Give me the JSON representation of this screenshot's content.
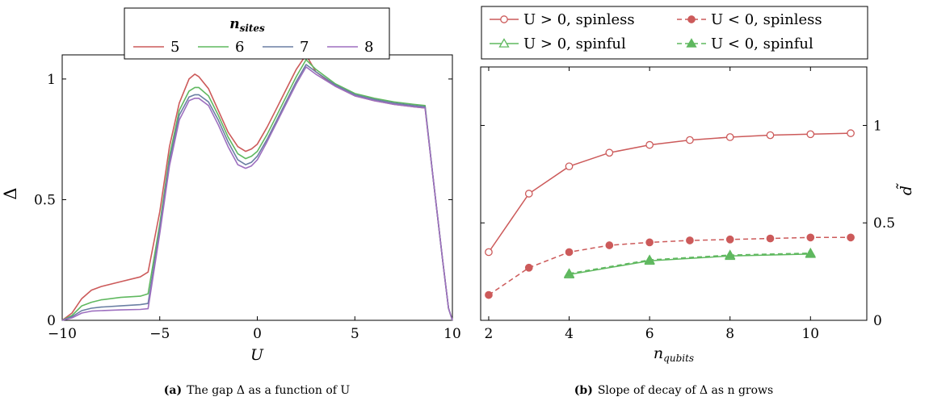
{
  "colors": {
    "red": "#cc5a5a",
    "green": "#5fb85f",
    "blue": "#6a7fa3",
    "purple": "#9d6fbf"
  },
  "chart_data": [
    {
      "id": "a",
      "type": "line",
      "caption_label": "(a)",
      "caption_text": "The gap Δ as a function of U",
      "xlabel": "U",
      "ylabel": "Δ",
      "xlim": [
        -10,
        10
      ],
      "ylim": [
        0,
        1.1
      ],
      "xticks": [
        -10,
        -5,
        0,
        5,
        10
      ],
      "xtick_labels": [
        "−10",
        "−5",
        "0",
        "5",
        "10"
      ],
      "yticks": [
        0,
        0.5,
        1
      ],
      "ytick_labels": [
        "0",
        "0.5",
        "1"
      ],
      "legend_title": "n",
      "legend_title_sub": "sites",
      "legend_placement": "top-center",
      "series": [
        {
          "name": "5",
          "color": "#cc5a5a",
          "x": [
            -10,
            -9.5,
            -9,
            -8.5,
            -8,
            -7,
            -6,
            -5.6,
            -5,
            -4.5,
            -4,
            -3.5,
            -3.2,
            -3,
            -2.5,
            -2,
            -1.5,
            -1,
            -0.6,
            -0.3,
            0,
            0.5,
            1,
            1.5,
            2,
            2.5,
            3,
            4,
            5,
            6,
            7,
            8,
            8.6,
            9,
            9.5,
            9.8,
            10
          ],
          "y": [
            0,
            0.03,
            0.09,
            0.125,
            0.14,
            0.16,
            0.18,
            0.2,
            0.45,
            0.72,
            0.9,
            1.0,
            1.02,
            1.01,
            0.96,
            0.87,
            0.78,
            0.72,
            0.7,
            0.71,
            0.73,
            0.8,
            0.88,
            0.96,
            1.04,
            1.1,
            1.03,
            0.97,
            0.93,
            0.91,
            0.895,
            0.885,
            0.88,
            0.6,
            0.25,
            0.05,
            0
          ]
        },
        {
          "name": "6",
          "color": "#5fb85f",
          "x": [
            -10,
            -9.5,
            -9,
            -8.5,
            -8,
            -7,
            -6,
            -5.6,
            -5,
            -4.5,
            -4,
            -3.5,
            -3.2,
            -3,
            -2.5,
            -2,
            -1.5,
            -1,
            -0.6,
            -0.3,
            0,
            0.5,
            1,
            1.5,
            2,
            2.5,
            3,
            4,
            5,
            6,
            7,
            8,
            8.6,
            9,
            9.5,
            9.8,
            10
          ],
          "y": [
            0,
            0.02,
            0.06,
            0.075,
            0.085,
            0.095,
            0.1,
            0.11,
            0.4,
            0.68,
            0.87,
            0.95,
            0.965,
            0.965,
            0.93,
            0.85,
            0.76,
            0.69,
            0.67,
            0.68,
            0.7,
            0.77,
            0.85,
            0.93,
            1.01,
            1.08,
            1.04,
            0.98,
            0.94,
            0.92,
            0.905,
            0.895,
            0.89,
            0.6,
            0.25,
            0.05,
            0
          ]
        },
        {
          "name": "7",
          "color": "#6a7fa3",
          "x": [
            -10,
            -9.5,
            -9,
            -8.5,
            -8,
            -7,
            -6,
            -5.6,
            -5,
            -4.5,
            -4,
            -3.5,
            -3.2,
            -3,
            -2.5,
            -2,
            -1.5,
            -1,
            -0.6,
            -0.3,
            0,
            0.5,
            1,
            1.5,
            2,
            2.5,
            3,
            4,
            5,
            6,
            7,
            8,
            8.6,
            9,
            9.5,
            9.8,
            10
          ],
          "y": [
            0,
            0.015,
            0.04,
            0.05,
            0.055,
            0.06,
            0.065,
            0.07,
            0.38,
            0.66,
            0.85,
            0.925,
            0.935,
            0.935,
            0.905,
            0.83,
            0.74,
            0.665,
            0.645,
            0.655,
            0.68,
            0.75,
            0.83,
            0.91,
            0.99,
            1.06,
            1.03,
            0.975,
            0.935,
            0.915,
            0.9,
            0.89,
            0.885,
            0.6,
            0.25,
            0.05,
            0
          ]
        },
        {
          "name": "8",
          "color": "#9d6fbf",
          "x": [
            -10,
            -9.5,
            -9,
            -8.5,
            -8,
            -7,
            -6,
            -5.6,
            -5,
            -4.5,
            -4,
            -3.5,
            -3.2,
            -3,
            -2.5,
            -2,
            -1.5,
            -1,
            -0.6,
            -0.3,
            0,
            0.5,
            1,
            1.5,
            2,
            2.5,
            3,
            4,
            5,
            6,
            7,
            8,
            8.6,
            9,
            9.5,
            9.8,
            10
          ],
          "y": [
            0,
            0.01,
            0.03,
            0.038,
            0.04,
            0.043,
            0.045,
            0.048,
            0.36,
            0.64,
            0.83,
            0.91,
            0.92,
            0.92,
            0.89,
            0.81,
            0.72,
            0.645,
            0.63,
            0.64,
            0.665,
            0.74,
            0.82,
            0.9,
            0.98,
            1.05,
            1.02,
            0.97,
            0.93,
            0.91,
            0.895,
            0.885,
            0.88,
            0.6,
            0.25,
            0.05,
            0
          ]
        }
      ]
    },
    {
      "id": "b",
      "type": "line",
      "caption_label": "(b)",
      "caption_text": "Slope of decay of Δ as n grows",
      "xlabel": "n",
      "xlabel_sub": "qubits",
      "ylabel": "d̃",
      "xlim": [
        1.8,
        11.4
      ],
      "ylim": [
        0,
        1.3
      ],
      "xticks": [
        2,
        4,
        6,
        8,
        10
      ],
      "xtick_labels": [
        "2",
        "4",
        "6",
        "8",
        "10"
      ],
      "yticks": [
        0,
        0.5,
        1
      ],
      "ytick_labels": [
        "0",
        "0.5",
        "1"
      ],
      "y_axis_side": "right",
      "legend_placement": "top-center",
      "series": [
        {
          "name": "U > 0, spinless",
          "color": "#cc5a5a",
          "marker": "open-circle",
          "dashed": false,
          "x": [
            2,
            3,
            4,
            5,
            6,
            7,
            8,
            9,
            10,
            11
          ],
          "y": [
            0.35,
            0.65,
            0.79,
            0.86,
            0.9,
            0.925,
            0.94,
            0.95,
            0.955,
            0.96
          ]
        },
        {
          "name": "U < 0, spinless",
          "color": "#cc5a5a",
          "marker": "filled-circle",
          "dashed": true,
          "x": [
            2,
            3,
            4,
            5,
            6,
            7,
            8,
            9,
            10,
            11
          ],
          "y": [
            0.13,
            0.27,
            0.35,
            0.385,
            0.4,
            0.41,
            0.415,
            0.42,
            0.425,
            0.425
          ]
        },
        {
          "name": "U > 0, spinful",
          "color": "#5fb85f",
          "marker": "open-triangle",
          "dashed": false,
          "x": [
            4,
            6,
            8,
            10
          ],
          "y": [
            0.235,
            0.305,
            0.33,
            0.34
          ]
        },
        {
          "name": "U < 0, spinful",
          "color": "#5fb85f",
          "marker": "filled-triangle",
          "dashed": true,
          "x": [
            4,
            6,
            8,
            10
          ],
          "y": [
            0.24,
            0.31,
            0.335,
            0.345
          ]
        }
      ]
    }
  ]
}
